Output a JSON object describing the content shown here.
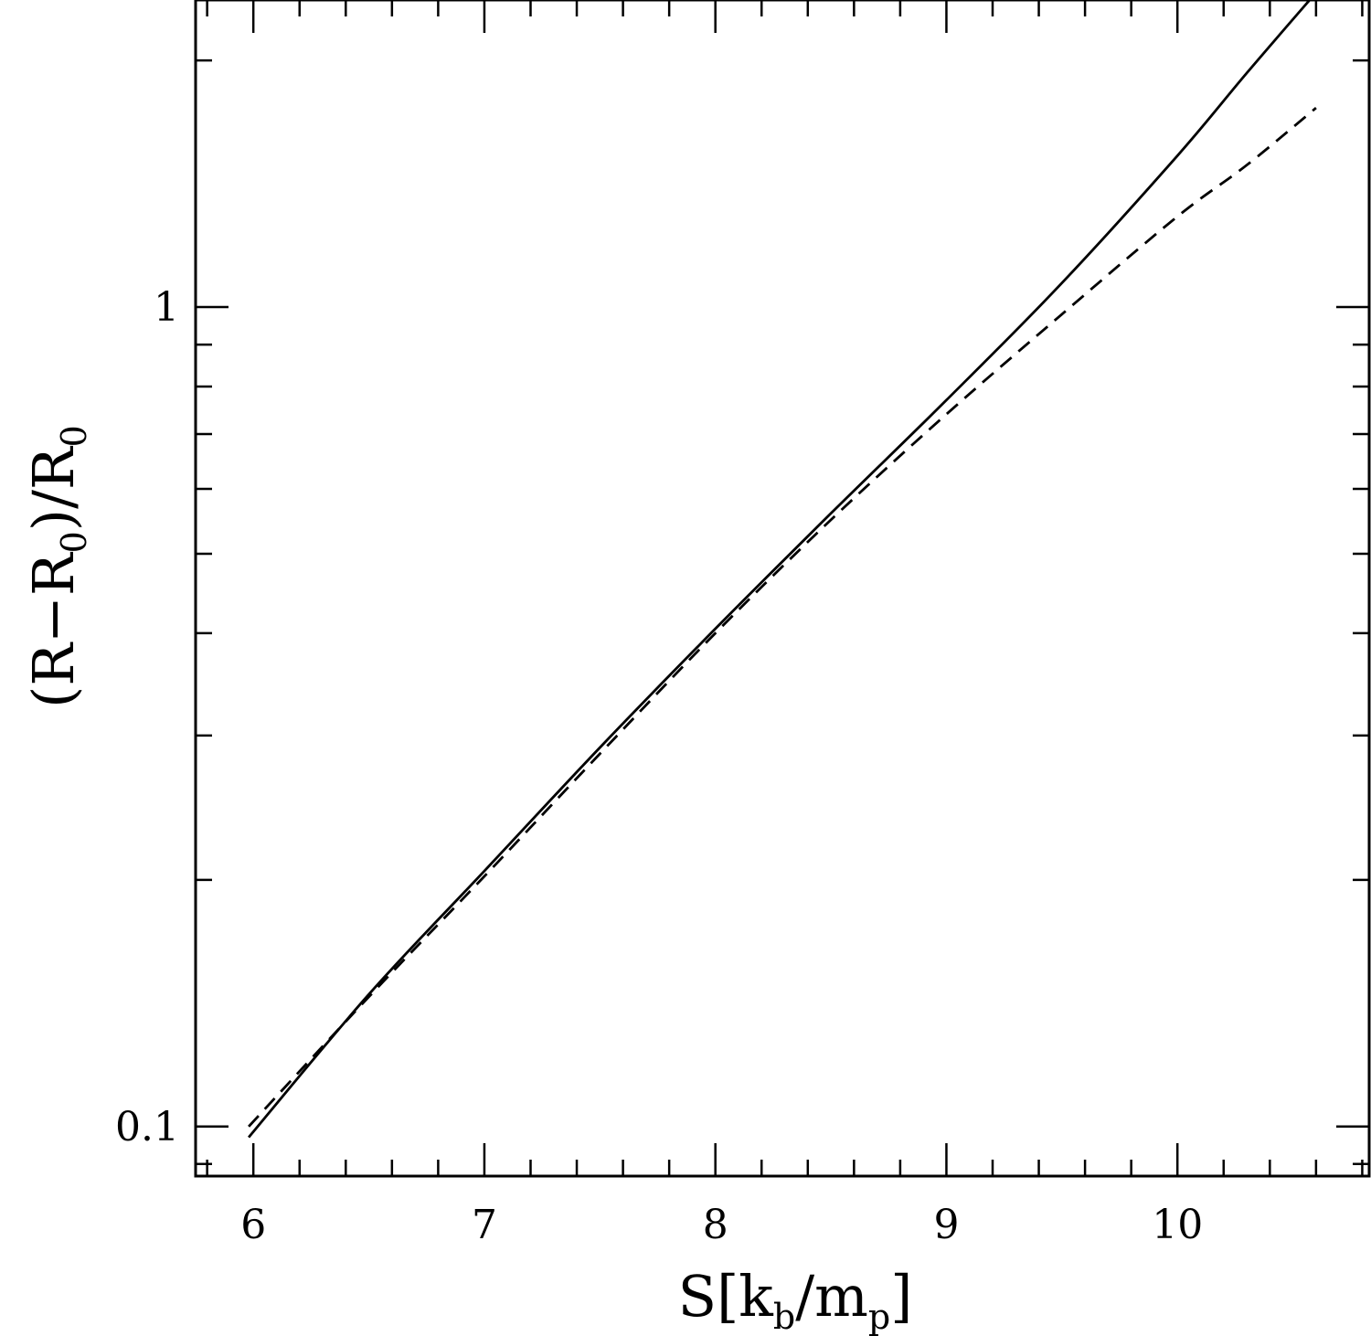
{
  "chart_data": {
    "type": "line",
    "title": "",
    "xlabel": "S[k_b/m_p]",
    "ylabel": "(R−R_0)/R_0",
    "xlim": [
      5.75,
      10.83
    ],
    "ylim": [
      0.087,
      2.37
    ],
    "yscale": "log",
    "grid": false,
    "legend": "none",
    "x_ticks": [
      {
        "value": 6,
        "label": "6"
      },
      {
        "value": 7,
        "label": "7"
      },
      {
        "value": 8,
        "label": "8"
      },
      {
        "value": 9,
        "label": "9"
      },
      {
        "value": 10,
        "label": "10"
      }
    ],
    "y_ticks": [
      {
        "value": 0.1,
        "label": "0.1"
      },
      {
        "value": 1,
        "label": "1"
      }
    ],
    "series": [
      {
        "style": "solid",
        "color": "#000000",
        "x": [
          5.98,
          6.5,
          7.0,
          7.5,
          8.0,
          8.5,
          9.0,
          9.5,
          10.0,
          10.3,
          10.6
        ],
        "y": [
          0.097,
          0.145,
          0.205,
          0.29,
          0.405,
          0.56,
          0.77,
          1.07,
          1.53,
          1.93,
          2.42
        ]
      },
      {
        "style": "dashed",
        "color": "#000000",
        "x": [
          5.98,
          6.5,
          7.0,
          7.5,
          8.0,
          8.5,
          9.0,
          9.5,
          10.0,
          10.3,
          10.6
        ],
        "y": [
          0.1,
          0.144,
          0.202,
          0.285,
          0.4,
          0.55,
          0.74,
          0.98,
          1.29,
          1.49,
          1.75
        ]
      }
    ]
  },
  "axis_labels": {
    "x_main": "S",
    "x_open": "[",
    "x_k": "k",
    "x_b": "b",
    "x_slash": "/",
    "x_m": "m",
    "x_p": "p",
    "x_close": "]",
    "y_part1": "(R−R",
    "y_sub1": "0",
    "y_part2": ")/R",
    "y_sub2": "0"
  }
}
